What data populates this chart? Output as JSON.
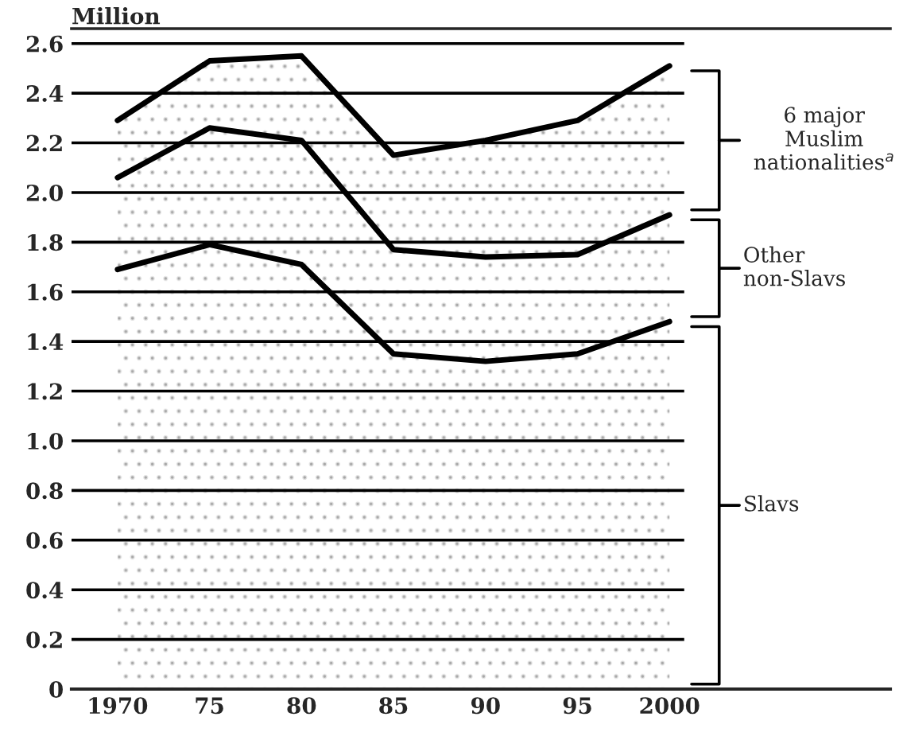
{
  "chart_data": {
    "type": "area",
    "stacked": true,
    "ylabel": "Million",
    "x": [
      1970,
      1975,
      1980,
      1985,
      1990,
      1995,
      2000
    ],
    "series": [
      {
        "name": "Slavs",
        "color": "#000000",
        "values": [
          1.69,
          1.79,
          1.71,
          1.35,
          1.32,
          1.35,
          1.48
        ]
      },
      {
        "name": "Other\nnon-Slavs",
        "color": "#000000",
        "values": [
          0.37,
          0.47,
          0.5,
          0.42,
          0.42,
          0.4,
          0.43
        ]
      },
      {
        "name": "6 major\nMuslim\nnationalities$^{a}$",
        "color": "#000000",
        "values": [
          0.23,
          0.27,
          0.34,
          0.38,
          0.47,
          0.54,
          0.6
        ]
      }
    ],
    "xlim": [
      1967.5,
      2012
    ],
    "xticks": [
      1970,
      {
        "value": 1975,
        "label": "75"
      },
      {
        "value": 1980,
        "label": "80"
      },
      {
        "value": 1985,
        "label": "85"
      },
      {
        "value": 1990,
        "label": "90"
      },
      {
        "value": 1995,
        "label": "95"
      },
      2000
    ],
    "ylim": [
      0,
      2.66
    ],
    "yticks": [
      0,
      0.2,
      0.4,
      0.6,
      0.8,
      {
        "value": 1,
        "label": "1.0"
      },
      1.2,
      1.4,
      1.6,
      1.8,
      {
        "value": 2,
        "label": "2.0"
      },
      2.2,
      2.4,
      2.6
    ],
    "grid": "y",
    "legend": "right"
  }
}
